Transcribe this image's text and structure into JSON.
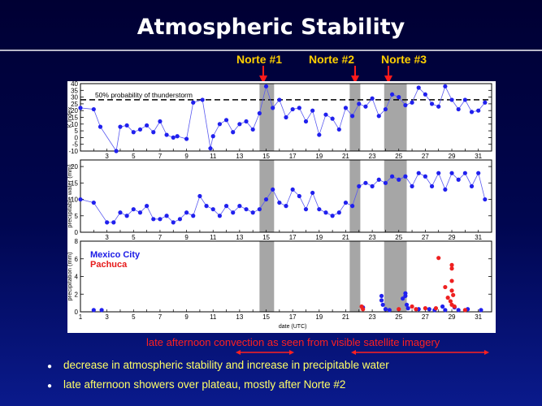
{
  "slide": {
    "title": "Atmospheric Stability",
    "norte_labels": [
      "Norte #1",
      "Norte #2",
      "Norte #3"
    ],
    "caption": "late afternoon convection as seen from visible satellite imagery",
    "bullets": [
      "decrease in atmospheric stability and increase in precipitable water",
      "late afternoon showers over plateau, mostly after Norte #2"
    ],
    "colors": {
      "title": "#ffffff",
      "norte": "#ffd000",
      "caption": "#ff2020",
      "bullet": "#ffff66"
    }
  },
  "chart_data": {
    "type": "line",
    "xrange": [
      1,
      32
    ],
    "shaded_periods": [
      [
        14.5,
        15.6
      ],
      [
        21.3,
        22.1
      ],
      [
        23.9,
        25.6
      ]
    ],
    "panels": [
      {
        "id": "k-index",
        "ylabel": "K Index",
        "ylim": [
          -10,
          40
        ],
        "yticks": [
          -10,
          -5,
          0,
          5,
          10,
          15,
          20,
          25,
          30,
          35,
          40
        ],
        "xticks": [
          3,
          5,
          7,
          9,
          11,
          13,
          15,
          17,
          19,
          21,
          23,
          25,
          27,
          29,
          31
        ],
        "threshold": 28,
        "threshold_label": "50% probability of thunderstorm",
        "series": [
          {
            "name": "K Index",
            "color": "#2020ee",
            "x": [
              1,
              2,
              2.5,
              3.7,
              4,
              4.5,
              5,
              5.5,
              6,
              6.5,
              7,
              7.5,
              8,
              8.3,
              9,
              9.5,
              10.2,
              10.8,
              11,
              11.5,
              12,
              12.5,
              13,
              13.5,
              14,
              14.5,
              15,
              15.5,
              16,
              16.5,
              17,
              17.5,
              18,
              18.5,
              19,
              19.5,
              20,
              20.5,
              21,
              21.5,
              22,
              22.5,
              23,
              23.5,
              24,
              24.5,
              25,
              25.5,
              26,
              26.5,
              27,
              27.5,
              28,
              28.5,
              29,
              29.5,
              30,
              30.5,
              31,
              31.5
            ],
            "y": [
              22,
              21,
              8,
              -10,
              8,
              9,
              4,
              6,
              9,
              4,
              12,
              2,
              0,
              1,
              -1,
              26,
              28,
              -8,
              1,
              10,
              13,
              4,
              10,
              12,
              6,
              18,
              38,
              22,
              28,
              15,
              21,
              22,
              12,
              20,
              2,
              17,
              14,
              6,
              22,
              16,
              25,
              23,
              29,
              16,
              21,
              32,
              30,
              24,
              26,
              37,
              32,
              25,
              23,
              38,
              28,
              21,
              28,
              19,
              20,
              26
            ]
          }
        ]
      },
      {
        "id": "precip-water",
        "ylabel": "precipitable water (mm)",
        "ylim": [
          0,
          22
        ],
        "yticks": [
          0,
          5,
          10,
          15,
          20
        ],
        "xticks": [
          3,
          5,
          7,
          9,
          11,
          13,
          15,
          17,
          19,
          21,
          23,
          25,
          27,
          29,
          31
        ],
        "series": [
          {
            "name": "Precipitable water",
            "color": "#2020ee",
            "x": [
              1,
              2,
              3,
              3.5,
              4,
              4.5,
              5,
              5.5,
              6,
              6.5,
              7,
              7.5,
              8,
              8.5,
              9,
              9.5,
              10,
              10.5,
              11,
              11.5,
              12,
              12.5,
              13,
              13.5,
              14,
              14.5,
              15,
              15.5,
              16,
              16.5,
              17,
              17.5,
              18,
              18.5,
              19,
              19.5,
              20,
              20.5,
              21,
              21.5,
              22,
              22.5,
              23,
              23.5,
              24,
              24.5,
              25,
              25.5,
              26,
              26.5,
              27,
              27.5,
              28,
              28.5,
              29,
              29.5,
              30,
              30.5,
              31,
              31.5
            ],
            "y": [
              10,
              9,
              3,
              3,
              6,
              5,
              7,
              6,
              8,
              4,
              4,
              5,
              3,
              4,
              6,
              5,
              11,
              8,
              7,
              5,
              8,
              6,
              8,
              7,
              6,
              7,
              10,
              13,
              9,
              8,
              13,
              11,
              7,
              12,
              7,
              6,
              5,
              6,
              9,
              8,
              14,
              15,
              14,
              16,
              15,
              17,
              16,
              17,
              14,
              18,
              17,
              14,
              18,
              13,
              18,
              16,
              18,
              14,
              18,
              10
            ]
          }
        ]
      },
      {
        "id": "precipitation",
        "ylabel": "precipitation (mm)",
        "ylim": [
          0,
          8
        ],
        "yticks": [
          0,
          2,
          4,
          6,
          8
        ],
        "xticks": [
          1,
          3,
          5,
          7,
          9,
          11,
          13,
          15,
          17,
          19,
          21,
          23,
          25,
          27,
          29,
          31
        ],
        "xlabel": "date (UTC)",
        "legend": [
          {
            "label": "Mexico City",
            "color": "#1a1ae6"
          },
          {
            "label": "Pachuca",
            "color": "#e61a1a"
          }
        ],
        "series": [
          {
            "name": "Mexico City",
            "color": "#2020ee",
            "x": [
              2,
              2.6,
              22.3,
              23.7,
              23.7,
              23.8,
              24.0,
              24.3,
              25.3,
              25.5,
              25.5,
              25.6,
              25.7,
              26.5,
              27.3,
              27.7,
              28.3,
              28.5,
              29.2,
              29.5,
              30.2,
              31.2
            ],
            "y": [
              0.2,
              0.2,
              0.5,
              1.8,
              1.3,
              0.8,
              0.3,
              0.2,
              1.5,
              2.1,
              1.8,
              0.8,
              0.4,
              0.3,
              0.3,
              0.2,
              0.6,
              0.2,
              0.5,
              0.2,
              0.3,
              0.2
            ]
          },
          {
            "name": "Pachuca",
            "color": "#ee2020",
            "x": [
              22.2,
              22.3,
              25.0,
              26.0,
              26.3,
              27.0,
              27.8,
              28.0,
              28.5,
              28.7,
              28.9,
              29.0,
              29.0,
              29.0,
              29.0,
              29.1,
              29.0,
              29.2,
              30.0
            ],
            "y": [
              0.6,
              0.3,
              0.3,
              0.6,
              0.3,
              0.4,
              0.4,
              6.1,
              2.8,
              1.6,
              1.2,
              5.3,
              4.9,
              3.5,
              2.4,
              1.9,
              0.8,
              0.6,
              0.2
            ]
          }
        ]
      }
    ]
  }
}
